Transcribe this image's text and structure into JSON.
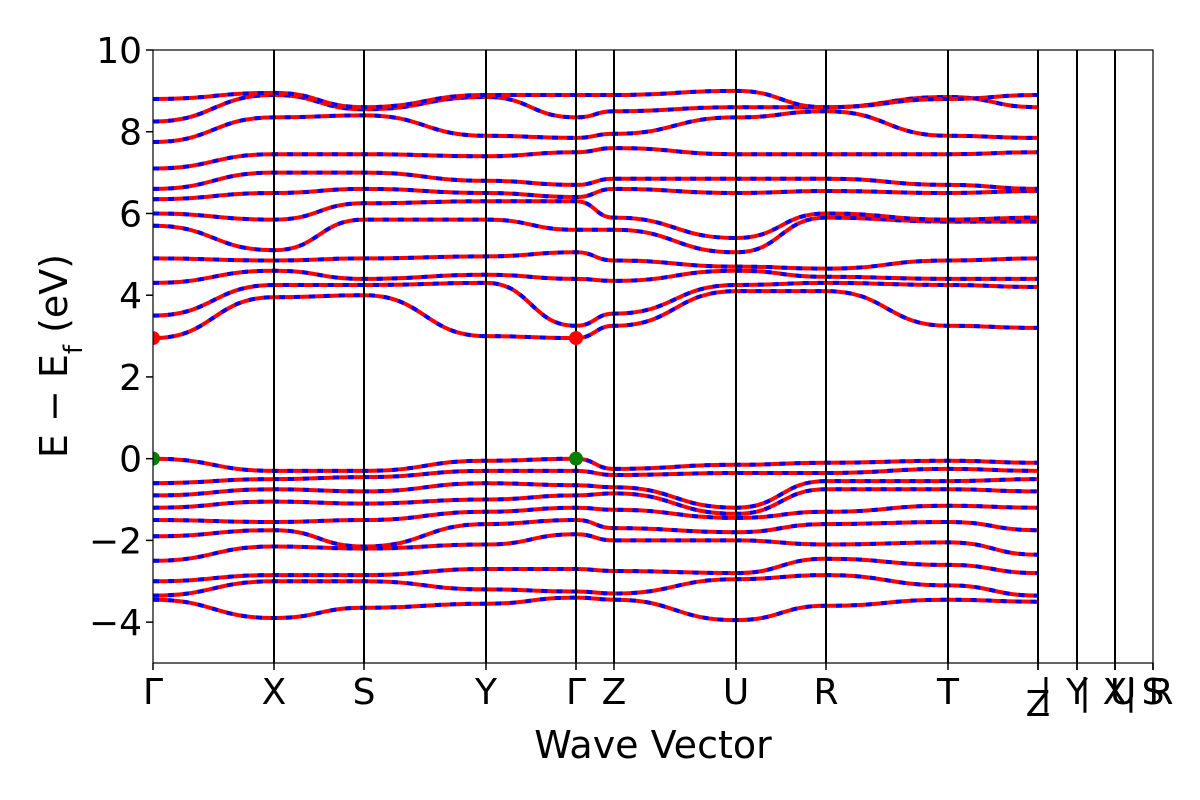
{
  "chart_data": {
    "type": "line",
    "title": "",
    "xlabel": "Wave Vector",
    "ylabel": "E − E",
    "ylabel_subscript": "f",
    "ylabel_unit": "(eV)",
    "ylim": [
      -5,
      10
    ],
    "yticks": [
      -4,
      -2,
      0,
      2,
      4,
      6,
      8,
      10
    ],
    "grid": false,
    "x_axis_kind": "k-path (cumulative path length, arbitrary units)",
    "xlim": [
      0,
      10
    ],
    "high_symmetry_points": [
      {
        "label": "Γ",
        "x": 0.0
      },
      {
        "label": "X",
        "x": 1.21
      },
      {
        "label": "S",
        "x": 2.11
      },
      {
        "label": "Y",
        "x": 3.33
      },
      {
        "label": "Γ",
        "x": 4.23
      },
      {
        "label": "Z",
        "x": 4.61
      },
      {
        "label": "U",
        "x": 5.83
      },
      {
        "label": "R",
        "x": 6.73
      },
      {
        "label": "T",
        "x": 7.95
      },
      {
        "label": "Z",
        "x": 8.85
      },
      {
        "label": "|",
        "x": 8.85
      },
      {
        "label": "Y",
        "x": 9.24
      },
      {
        "label": "|",
        "x": 9.24
      },
      {
        "label": "X",
        "x": 9.62
      },
      {
        "label": "U",
        "x": 9.62
      },
      {
        "label": "|",
        "x": 9.62
      },
      {
        "label": "S",
        "x": 10.0
      },
      {
        "label": "R",
        "x": 10.0
      }
    ],
    "band_style": {
      "color_a": "#ff0000",
      "color_b": "#0000ff",
      "dashed_overlay": true
    },
    "bands": {
      "conduction": [
        {
          "name": "",
          "x": [
            0,
            1.21,
            2.11,
            3.33,
            4.23,
            4.61,
            5.83,
            6.73,
            7.95,
            8.85
          ],
          "y": [
            2.95,
            3.95,
            4.0,
            3.0,
            2.95,
            3.25,
            4.1,
            4.1,
            3.25,
            3.2
          ]
        },
        {
          "name": "",
          "x": [
            0,
            1.21,
            2.11,
            3.33,
            4.23,
            4.61,
            5.83,
            6.73,
            7.95,
            8.85
          ],
          "y": [
            3.5,
            4.25,
            4.25,
            4.3,
            3.25,
            3.55,
            4.25,
            4.3,
            4.25,
            4.2
          ]
        },
        {
          "name": "",
          "x": [
            0,
            1.21,
            2.11,
            3.33,
            4.23,
            4.61,
            5.83,
            6.73,
            7.95,
            8.85
          ],
          "y": [
            4.3,
            4.6,
            4.4,
            4.5,
            4.4,
            4.35,
            4.6,
            4.45,
            4.4,
            4.4
          ]
        },
        {
          "name": "",
          "x": [
            0,
            1.21,
            2.11,
            3.33,
            4.23,
            4.61,
            5.83,
            6.73,
            7.95,
            8.85
          ],
          "y": [
            4.9,
            4.85,
            4.9,
            4.95,
            5.05,
            4.85,
            4.7,
            4.65,
            4.85,
            4.9
          ]
        },
        {
          "name": "",
          "x": [
            0,
            1.21,
            2.11,
            3.33,
            4.23,
            4.61,
            5.83,
            6.73,
            7.95,
            8.85
          ],
          "y": [
            5.7,
            5.1,
            5.85,
            5.85,
            5.6,
            5.6,
            5.05,
            5.9,
            5.8,
            5.8
          ]
        },
        {
          "name": "",
          "x": [
            0,
            1.21,
            2.11,
            3.33,
            4.23,
            4.61,
            5.83,
            6.73,
            7.95,
            8.85
          ],
          "y": [
            6.0,
            5.85,
            6.25,
            6.3,
            6.3,
            5.9,
            5.4,
            6.0,
            5.85,
            5.9
          ]
        },
        {
          "name": "",
          "x": [
            0,
            1.21,
            2.11,
            3.33,
            4.23,
            4.61,
            5.83,
            6.73,
            7.95,
            8.85
          ],
          "y": [
            6.35,
            6.5,
            6.6,
            6.5,
            6.4,
            6.6,
            6.5,
            6.55,
            6.5,
            6.55
          ]
        },
        {
          "name": "",
          "x": [
            0,
            1.21,
            2.11,
            3.33,
            4.23,
            4.61,
            5.83,
            6.73,
            7.95,
            8.85
          ],
          "y": [
            6.6,
            7.0,
            7.0,
            6.8,
            6.7,
            6.85,
            6.85,
            6.85,
            6.7,
            6.6
          ]
        },
        {
          "name": "",
          "x": [
            0,
            1.21,
            2.11,
            3.33,
            4.23,
            4.61,
            5.83,
            6.73,
            7.95,
            8.85
          ],
          "y": [
            7.1,
            7.45,
            7.45,
            7.4,
            7.5,
            7.6,
            7.45,
            7.45,
            7.45,
            7.5
          ]
        },
        {
          "name": "",
          "x": [
            0,
            1.21,
            2.11,
            3.33,
            4.23,
            4.61,
            5.83,
            6.73,
            7.95,
            8.85
          ],
          "y": [
            7.75,
            8.35,
            8.4,
            7.9,
            7.85,
            7.95,
            8.35,
            8.5,
            7.9,
            7.85
          ]
        },
        {
          "name": "",
          "x": [
            0,
            1.21,
            2.11,
            3.33,
            4.23,
            4.61,
            5.83,
            6.73,
            7.95,
            8.85
          ],
          "y": [
            8.25,
            8.9,
            8.55,
            8.85,
            8.35,
            8.5,
            8.6,
            8.6,
            8.85,
            8.6
          ]
        },
        {
          "name": "",
          "x": [
            0,
            1.21,
            2.11,
            3.33,
            4.23,
            4.61,
            5.83,
            6.73,
            7.95,
            8.85
          ],
          "y": [
            8.8,
            8.95,
            8.6,
            8.9,
            8.9,
            8.9,
            9.0,
            8.6,
            8.8,
            8.9
          ]
        }
      ],
      "valence": [
        {
          "name": "",
          "x": [
            0,
            1.21,
            2.11,
            3.33,
            4.23,
            4.61,
            5.83,
            6.73,
            7.95,
            8.85
          ],
          "y": [
            0.0,
            -0.3,
            -0.3,
            -0.05,
            0.0,
            -0.25,
            -0.15,
            -0.1,
            -0.05,
            -0.1
          ]
        },
        {
          "name": "",
          "x": [
            0,
            1.21,
            2.11,
            3.33,
            4.23,
            4.61,
            5.83,
            6.73,
            7.95,
            8.85
          ],
          "y": [
            -0.6,
            -0.5,
            -0.45,
            -0.3,
            -0.3,
            -0.4,
            -0.35,
            -0.35,
            -0.25,
            -0.3
          ]
        },
        {
          "name": "",
          "x": [
            0,
            1.21,
            2.11,
            3.33,
            4.23,
            4.61,
            5.83,
            6.73,
            7.95,
            8.85
          ],
          "y": [
            -0.9,
            -0.75,
            -0.8,
            -0.6,
            -0.65,
            -0.7,
            -1.2,
            -0.55,
            -0.55,
            -0.5
          ]
        },
        {
          "name": "",
          "x": [
            0,
            1.21,
            2.11,
            3.33,
            4.23,
            4.61,
            5.83,
            6.73,
            7.95,
            8.85
          ],
          "y": [
            -1.2,
            -1.05,
            -1.1,
            -1.0,
            -0.9,
            -0.85,
            -1.35,
            -0.75,
            -0.75,
            -0.8
          ]
        },
        {
          "name": "",
          "x": [
            0,
            1.21,
            2.11,
            3.33,
            4.23,
            4.61,
            5.83,
            6.73,
            7.95,
            8.85
          ],
          "y": [
            -1.5,
            -1.55,
            -1.5,
            -1.3,
            -1.2,
            -1.25,
            -1.45,
            -1.3,
            -1.15,
            -1.2
          ]
        },
        {
          "name": "",
          "x": [
            0,
            1.21,
            2.11,
            3.33,
            4.23,
            4.61,
            5.83,
            6.73,
            7.95,
            8.85
          ],
          "y": [
            -1.9,
            -1.75,
            -2.15,
            -1.6,
            -1.5,
            -1.7,
            -1.8,
            -1.6,
            -1.55,
            -1.75
          ]
        },
        {
          "name": "",
          "x": [
            0,
            1.21,
            2.11,
            3.33,
            4.23,
            4.61,
            5.83,
            6.73,
            7.95,
            8.85
          ],
          "y": [
            -2.5,
            -2.15,
            -2.2,
            -2.1,
            -1.85,
            -2.0,
            -2.0,
            -2.1,
            -2.05,
            -2.35
          ]
        },
        {
          "name": "",
          "x": [
            0,
            1.21,
            2.11,
            3.33,
            4.23,
            4.61,
            5.83,
            6.73,
            7.95,
            8.85
          ],
          "y": [
            -3.0,
            -2.85,
            -2.85,
            -2.7,
            -2.7,
            -2.75,
            -2.8,
            -2.45,
            -2.6,
            -2.8
          ]
        },
        {
          "name": "",
          "x": [
            0,
            1.21,
            2.11,
            3.33,
            4.23,
            4.61,
            5.83,
            6.73,
            7.95,
            8.85
          ],
          "y": [
            -3.35,
            -3.0,
            -3.0,
            -3.2,
            -3.25,
            -3.3,
            -2.95,
            -2.85,
            -3.1,
            -3.35
          ]
        },
        {
          "name": "",
          "x": [
            0,
            1.21,
            2.11,
            3.33,
            4.23,
            4.61,
            5.83,
            6.73,
            7.95,
            8.85
          ],
          "y": [
            -3.45,
            -3.9,
            -3.65,
            -3.55,
            -3.4,
            -3.45,
            -3.95,
            -3.6,
            -3.45,
            -3.5
          ]
        }
      ]
    },
    "extrema_markers": [
      {
        "name": "CBM",
        "x": 0.0,
        "y": 2.95,
        "color": "#ff0000"
      },
      {
        "name": "CBM",
        "x": 4.23,
        "y": 2.95,
        "color": "#ff0000"
      },
      {
        "name": "VBM",
        "x": 0.0,
        "y": 0.0,
        "color": "#008000"
      },
      {
        "name": "VBM",
        "x": 4.23,
        "y": 0.0,
        "color": "#008000"
      }
    ]
  }
}
